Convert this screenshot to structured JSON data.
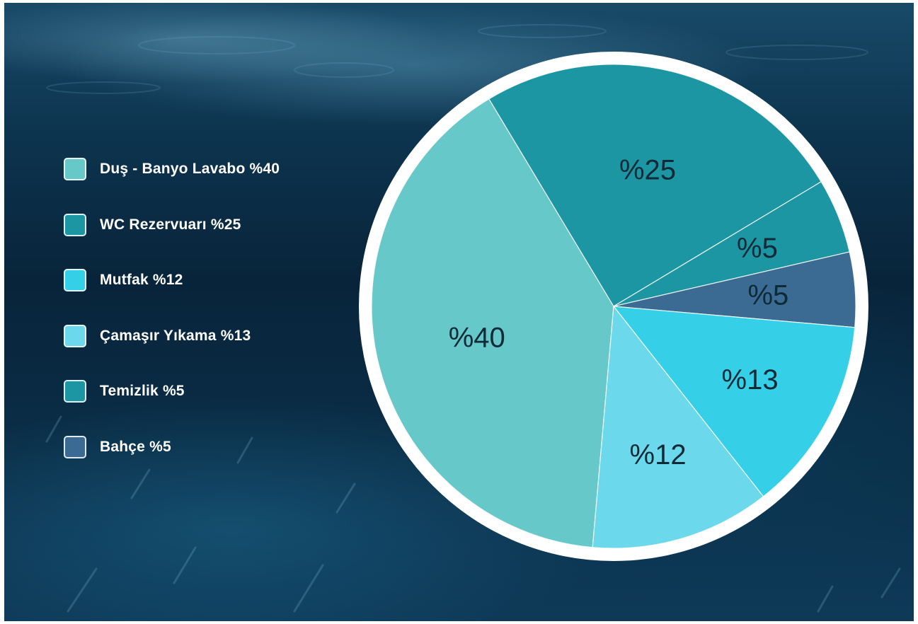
{
  "chart_data": {
    "type": "pie",
    "slices": [
      {
        "label": "%40",
        "legend": "Duş - Banyo Lavabo %40",
        "value": 40,
        "color": "#66c8c9"
      },
      {
        "label": "%25",
        "legend": "WC Rezervuarı %25",
        "value": 25,
        "color": "#1c96a2"
      },
      {
        "label": "%5",
        "legend": "Temizlik %5",
        "value": 5,
        "color": "#1c96a2"
      },
      {
        "label": "%5",
        "legend": "Bahçe %5",
        "value": 5,
        "color": "#3b6b92"
      },
      {
        "label": "%13",
        "legend": "Çamaşır Yıkama %13",
        "value": 13,
        "color": "#35d0e8"
      },
      {
        "label": "%12",
        "legend": "Mutfak %12",
        "value": 12,
        "color": "#6cd8ec"
      }
    ],
    "legend": [
      {
        "label": "Duş - Banyo Lavabo %40",
        "color": "#66c8c9"
      },
      {
        "label": "WC Rezervuarı %25",
        "color": "#1c96a2"
      },
      {
        "label": "Mutfak %12",
        "color": "#35d0e8"
      },
      {
        "label": "Çamaşır Yıkama %13",
        "color": "#6cd8ec"
      },
      {
        "label": "Temizlik %5",
        "color": "#1c96a2"
      },
      {
        "label": "Bahçe %5",
        "color": "#3b6b92"
      }
    ],
    "legend_position": "left"
  }
}
